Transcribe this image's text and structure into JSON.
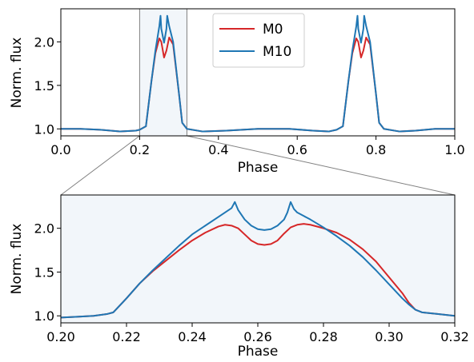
{
  "chart_data": [
    {
      "type": "line",
      "xlabel": "Phase",
      "ylabel": "Norm. flux",
      "xlim": [
        0.0,
        1.0
      ],
      "ylim": [
        0.92,
        2.38
      ],
      "xticks": [
        "0.0",
        "0.2",
        "0.4",
        "0.6",
        "0.8",
        "1.0"
      ],
      "yticks": [
        "1.0",
        "1.5",
        "2.0"
      ],
      "legend": {
        "position": "top-center",
        "entries": [
          "M0",
          "M10"
        ]
      },
      "highlight_region": [
        0.2,
        0.32
      ],
      "series": [
        {
          "name": "M0",
          "color": "#d62728",
          "x": [
            0.0,
            0.05,
            0.1,
            0.15,
            0.19,
            0.2,
            0.216,
            0.23,
            0.24,
            0.25,
            0.255,
            0.262,
            0.268,
            0.275,
            0.285,
            0.3,
            0.308,
            0.32,
            0.36,
            0.42,
            0.5,
            0.58,
            0.64,
            0.68,
            0.7,
            0.716,
            0.73,
            0.74,
            0.75,
            0.755,
            0.762,
            0.768,
            0.775,
            0.785,
            0.8,
            0.808,
            0.82,
            0.86,
            0.9,
            0.95,
            1.0
          ],
          "y": [
            1.0,
            1.0,
            0.99,
            0.97,
            0.98,
            0.99,
            1.03,
            1.55,
            1.87,
            2.04,
            2.0,
            1.82,
            1.9,
            2.05,
            1.97,
            1.4,
            1.07,
            1.0,
            0.97,
            0.98,
            1.0,
            1.0,
            0.98,
            0.97,
            0.99,
            1.03,
            1.55,
            1.87,
            2.04,
            2.0,
            1.82,
            1.9,
            2.05,
            1.97,
            1.4,
            1.07,
            1.0,
            0.97,
            0.98,
            1.0,
            1.0
          ]
        },
        {
          "name": "M10",
          "color": "#1f77b4",
          "x": [
            0.0,
            0.05,
            0.1,
            0.15,
            0.19,
            0.2,
            0.216,
            0.23,
            0.24,
            0.25,
            0.253,
            0.255,
            0.262,
            0.268,
            0.27,
            0.275,
            0.285,
            0.3,
            0.308,
            0.32,
            0.36,
            0.42,
            0.5,
            0.58,
            0.64,
            0.68,
            0.7,
            0.716,
            0.73,
            0.74,
            0.75,
            0.753,
            0.755,
            0.762,
            0.768,
            0.77,
            0.775,
            0.785,
            0.8,
            0.808,
            0.82,
            0.86,
            0.9,
            0.95,
            1.0
          ],
          "y": [
            1.0,
            1.0,
            0.99,
            0.97,
            0.98,
            0.99,
            1.03,
            1.55,
            1.9,
            2.18,
            2.3,
            2.15,
            1.99,
            2.15,
            2.3,
            2.18,
            2.0,
            1.4,
            1.07,
            1.0,
            0.97,
            0.98,
            1.0,
            1.0,
            0.98,
            0.97,
            0.99,
            1.03,
            1.55,
            1.9,
            2.18,
            2.3,
            2.15,
            1.99,
            2.15,
            2.3,
            2.18,
            2.0,
            1.4,
            1.07,
            1.0,
            0.97,
            0.98,
            1.0,
            1.0
          ]
        }
      ]
    },
    {
      "type": "line",
      "xlabel": "Phase",
      "ylabel": "Norm. flux",
      "xlim": [
        0.2,
        0.32
      ],
      "ylim": [
        0.92,
        2.38
      ],
      "xticks": [
        "0.20",
        "0.22",
        "0.24",
        "0.26",
        "0.28",
        "0.30",
        "0.32"
      ],
      "yticks": [
        "1.0",
        "1.5",
        "2.0"
      ],
      "series": [
        {
          "name": "M0",
          "color": "#d62728",
          "x": [
            0.2,
            0.205,
            0.21,
            0.214,
            0.216,
            0.218,
            0.22,
            0.224,
            0.228,
            0.232,
            0.236,
            0.24,
            0.244,
            0.248,
            0.25,
            0.252,
            0.254,
            0.256,
            0.258,
            0.26,
            0.262,
            0.264,
            0.266,
            0.268,
            0.27,
            0.272,
            0.274,
            0.276,
            0.28,
            0.284,
            0.288,
            0.292,
            0.296,
            0.3,
            0.304,
            0.306,
            0.308,
            0.31,
            0.315,
            0.32
          ],
          "y": [
            0.98,
            0.99,
            1.0,
            1.02,
            1.04,
            1.12,
            1.2,
            1.37,
            1.51,
            1.63,
            1.75,
            1.86,
            1.95,
            2.02,
            2.04,
            2.03,
            2.0,
            1.93,
            1.86,
            1.82,
            1.81,
            1.82,
            1.86,
            1.94,
            2.01,
            2.04,
            2.05,
            2.04,
            2.0,
            1.95,
            1.87,
            1.76,
            1.62,
            1.44,
            1.26,
            1.15,
            1.07,
            1.04,
            1.02,
            1.0
          ]
        },
        {
          "name": "M10",
          "color": "#1f77b4",
          "x": [
            0.2,
            0.205,
            0.21,
            0.214,
            0.216,
            0.218,
            0.22,
            0.224,
            0.228,
            0.232,
            0.236,
            0.24,
            0.244,
            0.248,
            0.25,
            0.252,
            0.253,
            0.254,
            0.256,
            0.258,
            0.26,
            0.262,
            0.264,
            0.266,
            0.268,
            0.269,
            0.27,
            0.271,
            0.272,
            0.274,
            0.276,
            0.28,
            0.284,
            0.288,
            0.292,
            0.296,
            0.3,
            0.304,
            0.306,
            0.308,
            0.31,
            0.315,
            0.32
          ],
          "y": [
            0.98,
            0.99,
            1.0,
            1.02,
            1.04,
            1.12,
            1.2,
            1.37,
            1.52,
            1.66,
            1.8,
            1.93,
            2.03,
            2.13,
            2.18,
            2.23,
            2.3,
            2.21,
            2.1,
            2.03,
            1.99,
            1.98,
            1.99,
            2.03,
            2.1,
            2.18,
            2.3,
            2.22,
            2.18,
            2.14,
            2.1,
            2.01,
            1.91,
            1.8,
            1.67,
            1.52,
            1.36,
            1.2,
            1.13,
            1.07,
            1.04,
            1.02,
            1.0
          ]
        }
      ]
    }
  ]
}
